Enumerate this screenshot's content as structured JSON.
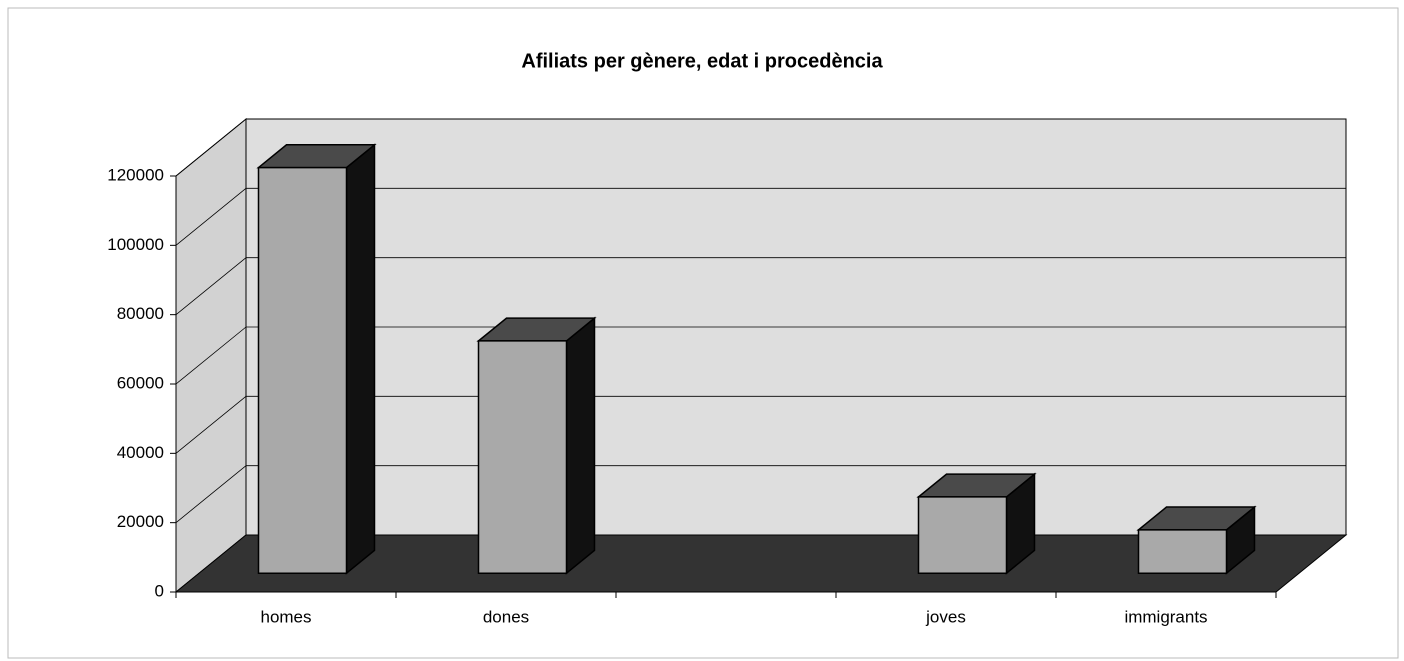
{
  "chart_data": {
    "type": "bar3d",
    "title": "Afiliats per gènere, edat i procedència",
    "categories": [
      "homes",
      "dones",
      null,
      "joves",
      "immigrants"
    ],
    "values": [
      117000,
      67000,
      null,
      22000,
      12500
    ],
    "color": "#a9a9a9",
    "ylim": [
      0,
      120000
    ],
    "yticks": [
      0,
      20000,
      40000,
      60000,
      80000,
      100000,
      120000
    ],
    "grid": true
  }
}
